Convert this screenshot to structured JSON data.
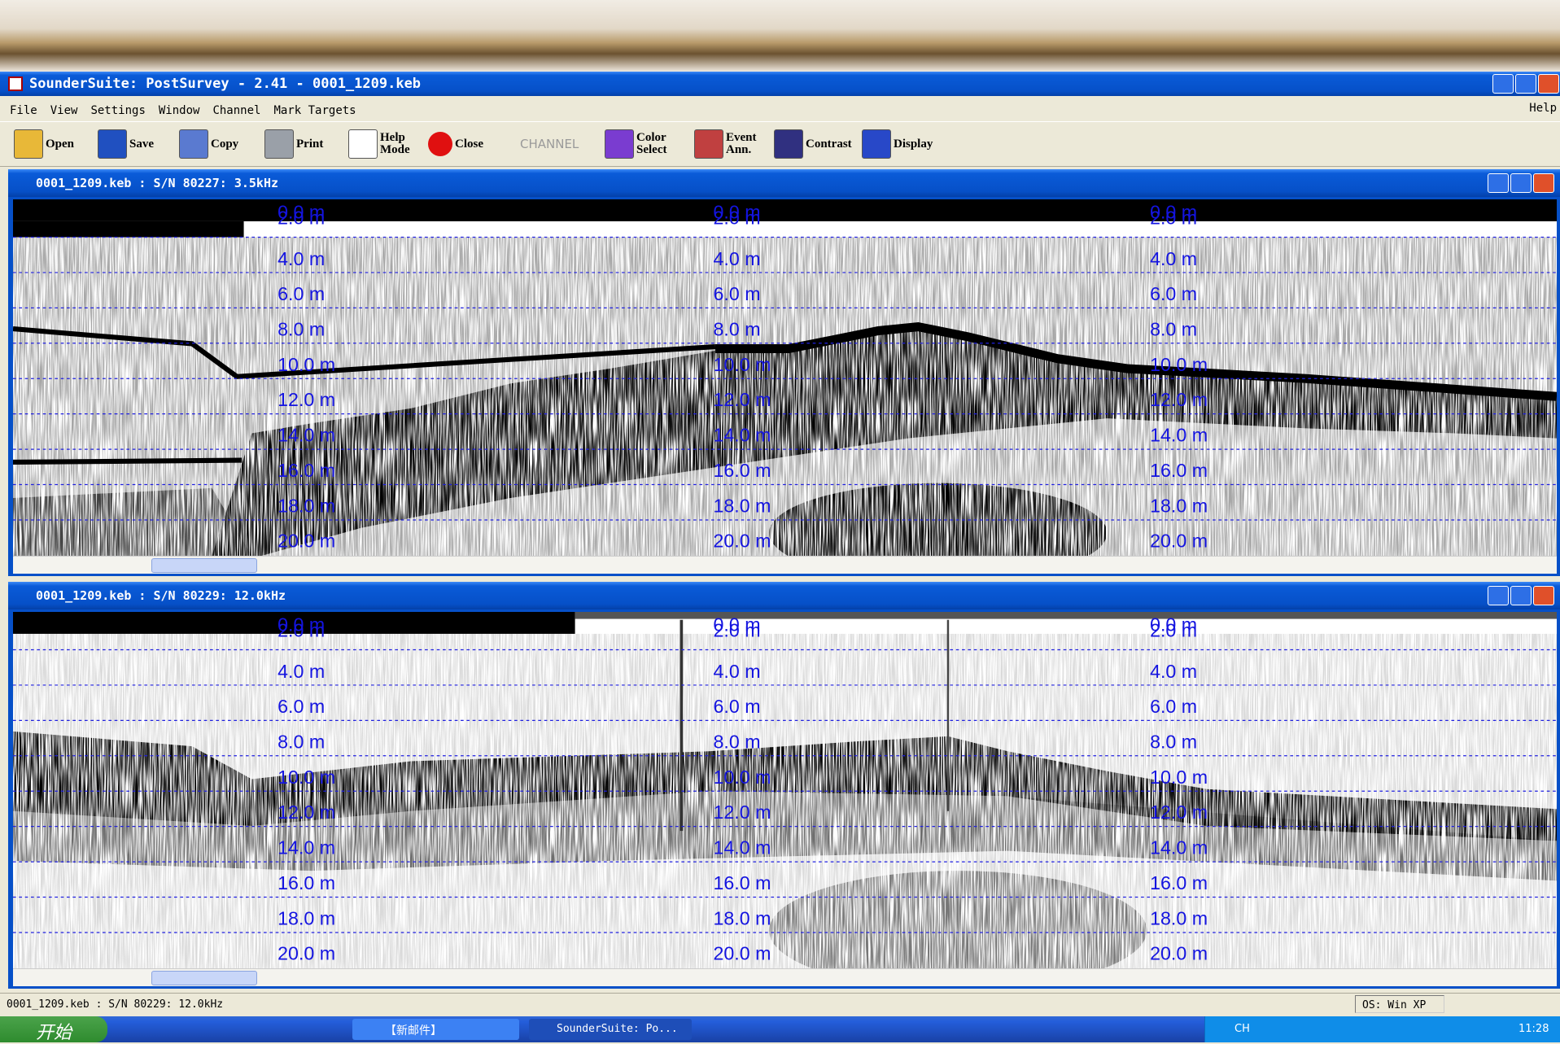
{
  "window": {
    "title": "SounderSuite: PostSurvey - 2.41 - 0001_1209.keb",
    "menu": [
      "File",
      "View",
      "Settings",
      "Window",
      "Channel",
      "Mark Targets"
    ],
    "menu_right": "Help"
  },
  "toolbar": [
    [
      "Open"
    ],
    [
      "Save"
    ],
    [
      "Copy"
    ],
    [
      "Print"
    ],
    [
      "Help",
      "Mode"
    ],
    [
      "Close"
    ],
    [
      "CHANNEL"
    ],
    [
      "Color",
      "Select"
    ],
    [
      "Event",
      "Ann."
    ],
    [
      "Contrast"
    ],
    [
      "Display"
    ]
  ],
  "panels": [
    {
      "title": "0001_1209.keb : S/N 80227: 3.5kHz",
      "depth_labels": [
        "0.0 m",
        "2.0 m",
        "4.0 m",
        "6.0 m",
        "8.0 m",
        "10.0 m",
        "12.0 m",
        "14.0 m",
        "16.0 m",
        "18.0 m",
        "20.0 m"
      ]
    },
    {
      "title": "0001_1209.keb : S/N 80229: 12.0kHz",
      "depth_labels": [
        "0.0 m",
        "2.0 m",
        "4.0 m",
        "6.0 m",
        "8.0 m",
        "10.0 m",
        "12.0 m",
        "14.0 m",
        "16.0 m",
        "18.0 m",
        "20.0 m"
      ]
    }
  ],
  "status": [
    "0001_1209.keb : S/N 80229: 12.0kHz",
    "OS: Win XP"
  ],
  "taskbar": {
    "start": "开始",
    "items": [
      "【新邮件】",
      "SounderSuite: Po..."
    ],
    "tray": [
      "CH",
      "11:28"
    ]
  }
}
